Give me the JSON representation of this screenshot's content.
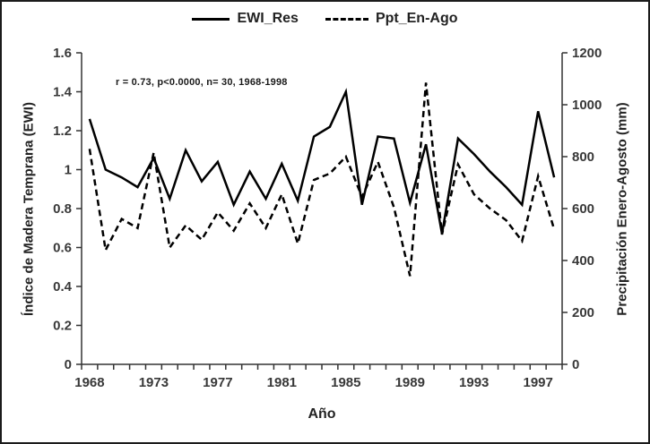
{
  "legend": [
    {
      "label": "EWI_Res",
      "style": "solid"
    },
    {
      "label": "Ppt_En-Ago",
      "style": "dashed"
    }
  ],
  "annotation": "r = 0.73, p<0.0000, n= 30, 1968-1998",
  "colors": {
    "line": "#000000",
    "axis": "#333333",
    "tick_text": "#383838",
    "border": "#1b1b1b",
    "background": "#ffffff"
  },
  "chart_data": {
    "type": "line",
    "title": "",
    "xlabel": "Año",
    "grid": false,
    "legend_position": "top-center",
    "years": [
      1968,
      1969,
      1970,
      1971,
      1973,
      1974,
      1975,
      1976,
      1977,
      1978,
      1979,
      1980,
      1981,
      1982,
      1983,
      1984,
      1985,
      1986,
      1987,
      1988,
      1989,
      1990,
      1991,
      1992,
      1993,
      1994,
      1995,
      1996,
      1997,
      1998
    ],
    "note": "30 points, year 1972 absent from series",
    "series": [
      {
        "name": "EWI_Res",
        "axis": "left",
        "style": "solid",
        "values": [
          1.26,
          1.0,
          0.96,
          0.91,
          1.06,
          0.85,
          1.1,
          0.94,
          1.04,
          0.82,
          0.99,
          0.85,
          1.03,
          0.84,
          1.17,
          1.22,
          1.4,
          0.82,
          1.17,
          1.16,
          0.83,
          1.13,
          0.67,
          1.16,
          1.08,
          0.99,
          0.91,
          0.82,
          1.3,
          0.96
        ]
      },
      {
        "name": "Ppt_En-Ago",
        "axis": "right",
        "style": "dashed",
        "values": [
          830,
          440,
          560,
          525,
          815,
          450,
          535,
          480,
          585,
          515,
          620,
          525,
          655,
          465,
          710,
          735,
          800,
          645,
          780,
          605,
          340,
          1085,
          500,
          770,
          655,
          600,
          555,
          475,
          725,
          520
        ]
      }
    ],
    "left_axis": {
      "label": "Índice de Madera Temprana (EWI)",
      "min": 0,
      "max": 1.6,
      "tick_values": [
        0,
        0.2,
        0.4,
        0.6,
        0.8,
        1,
        1.2,
        1.4,
        1.6
      ],
      "tick_labels": [
        "0",
        "0.2",
        "0.4",
        "0.6",
        "0.8",
        "1",
        "1.2",
        "1.4",
        "1.6"
      ]
    },
    "right_axis": {
      "label": "Precipitación Enero-Agosto (mm)",
      "min": 0,
      "max": 1200,
      "tick_values": [
        0,
        200,
        400,
        600,
        800,
        1000,
        1200
      ],
      "tick_labels": [
        "0",
        "200",
        "400",
        "600",
        "800",
        "1000",
        "1200"
      ]
    },
    "x_axis": {
      "label": "Año",
      "tick_indices": [
        0,
        4,
        8,
        12,
        16,
        20,
        24,
        28
      ],
      "tick_labels": [
        "1968",
        "1973",
        "1977",
        "1981",
        "1985",
        "1989",
        "1993",
        "1997"
      ]
    }
  }
}
